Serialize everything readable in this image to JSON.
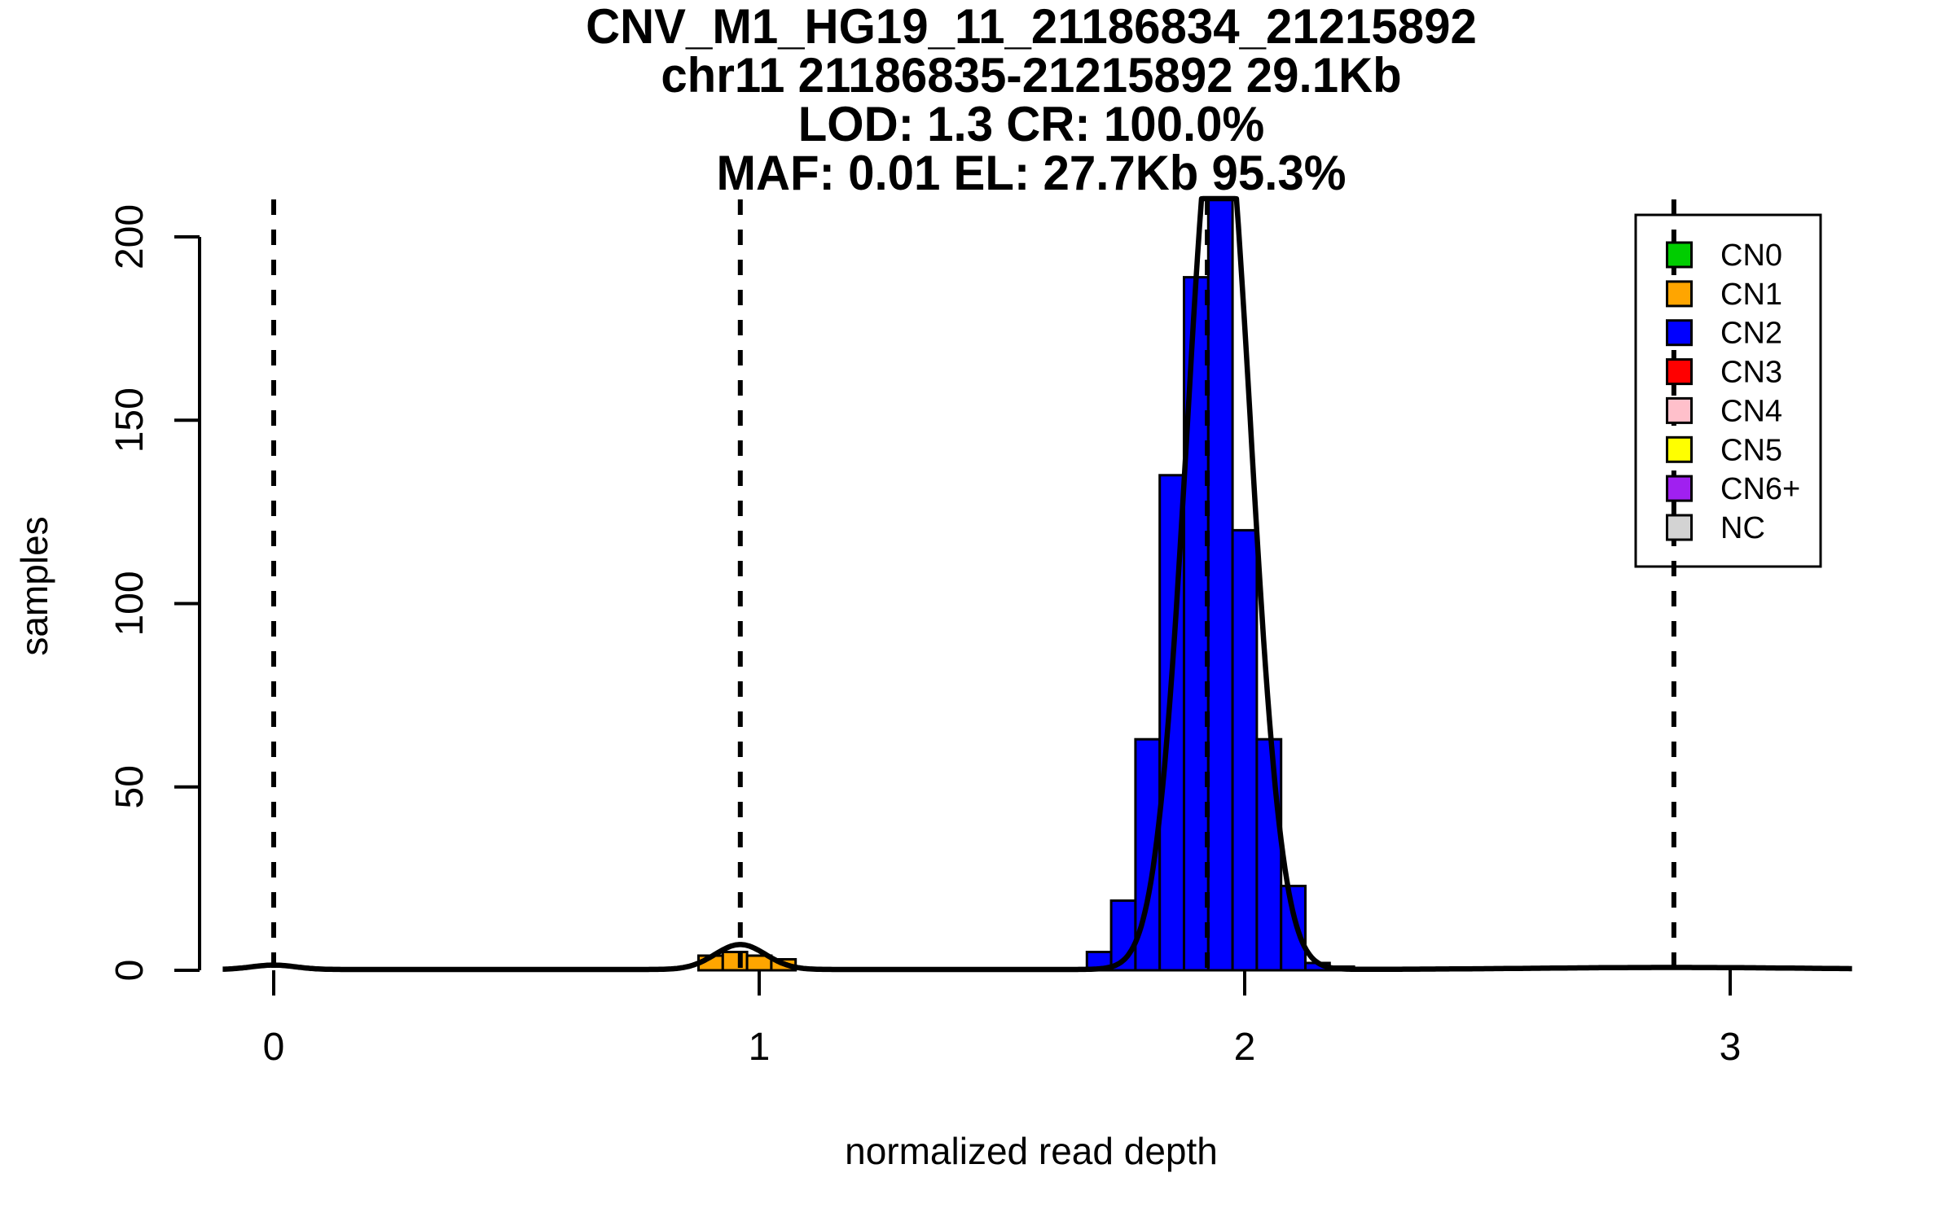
{
  "title": {
    "line1": "CNV_M1_HG19_11_21186834_21215892",
    "line2": "chr11 21186835-21215892 29.1Kb",
    "line3": "LOD: 1.3 CR: 100.0%",
    "line4": "MAF: 0.01 EL: 27.7Kb 95.3%"
  },
  "axes": {
    "x": {
      "label": "normalized read depth",
      "ticks": [
        0,
        1,
        2,
        3
      ],
      "tick_labels": [
        "0",
        "1",
        "2",
        "3"
      ],
      "range": [
        -0.153,
        3.278
      ]
    },
    "y": {
      "label": "samples",
      "ticks": [
        0,
        50,
        100,
        150,
        200
      ],
      "tick_labels": [
        "0",
        "50",
        "100",
        "150",
        "200"
      ],
      "range": [
        0,
        210.2
      ]
    }
  },
  "legend": {
    "items": [
      {
        "label": "CN0",
        "color": "#00CD00"
      },
      {
        "label": "CN1",
        "color": "#FFA500"
      },
      {
        "label": "CN2",
        "color": "#0000FF"
      },
      {
        "label": "CN3",
        "color": "#FF0000"
      },
      {
        "label": "CN4",
        "color": "#FFC0CB"
      },
      {
        "label": "CN5",
        "color": "#FFFF00"
      },
      {
        "label": "CN6+",
        "color": "#A020F0"
      },
      {
        "label": "NC",
        "color": "#D3D3D3"
      }
    ],
    "border_color": "#000000"
  },
  "chart_data": {
    "type": "bar",
    "subtype": "histogram_with_density_curve",
    "title": "CNV_M1_HG19_11_21186834_21215892",
    "xlabel": "normalized read depth",
    "ylabel": "samples",
    "xlim": [
      -0.153,
      3.278
    ],
    "ylim": [
      0,
      210.2
    ],
    "grid": false,
    "legend_position": "top-right",
    "bin_width": 0.05,
    "series": [
      {
        "name": "CN1",
        "color": "#FFA500",
        "bar_border": "#000000",
        "first_bin_start": 0.875,
        "counts": [
          4,
          5,
          4,
          3
        ]
      },
      {
        "name": "CN2",
        "color": "#0000FF",
        "bar_border": "#000000",
        "first_bin_start": 1.675,
        "counts": [
          5,
          19,
          63,
          135,
          189,
          230,
          120,
          63,
          23,
          2,
          1
        ]
      }
    ],
    "density_curve": {
      "color": "#000000",
      "x_range": [
        -0.105,
        3.254
      ],
      "clip_y_at": 210.2,
      "components": [
        {
          "mean": 0.0,
          "amp": 1.2,
          "sd": 0.045
        },
        {
          "mean": 0.961,
          "amp": 6.8,
          "sd": 0.052
        },
        {
          "mean": 1.947,
          "amp": 245,
          "sd": 0.065
        },
        {
          "mean": 2.88,
          "amp": 0.55,
          "sd": 0.28
        }
      ]
    },
    "dashed_vlines": {
      "color": "#000000",
      "positions": [
        0,
        0.961,
        1.923,
        2.884
      ]
    }
  }
}
